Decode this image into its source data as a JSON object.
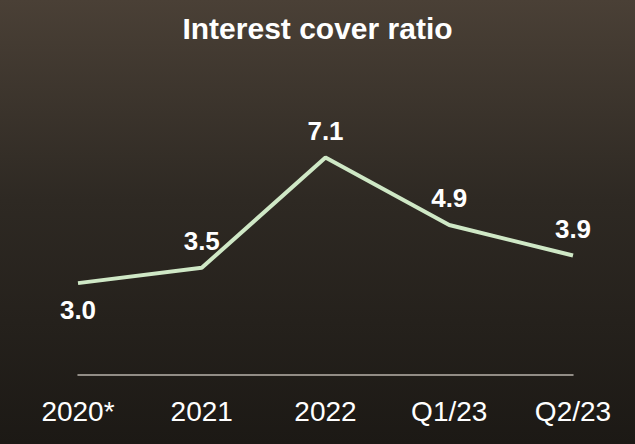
{
  "chart_data": {
    "type": "line",
    "title": "Interest cover ratio",
    "categories": [
      "2020*",
      "2021",
      "2022",
      "Q1/23",
      "Q2/23"
    ],
    "values": [
      3.0,
      3.5,
      7.1,
      4.9,
      3.9
    ],
    "value_labels": [
      "3.0",
      "3.5",
      "7.1",
      "4.9",
      "3.9"
    ],
    "color": "#cfe8c6",
    "data_labels": true,
    "tick_labels": "x",
    "grid": false
  }
}
